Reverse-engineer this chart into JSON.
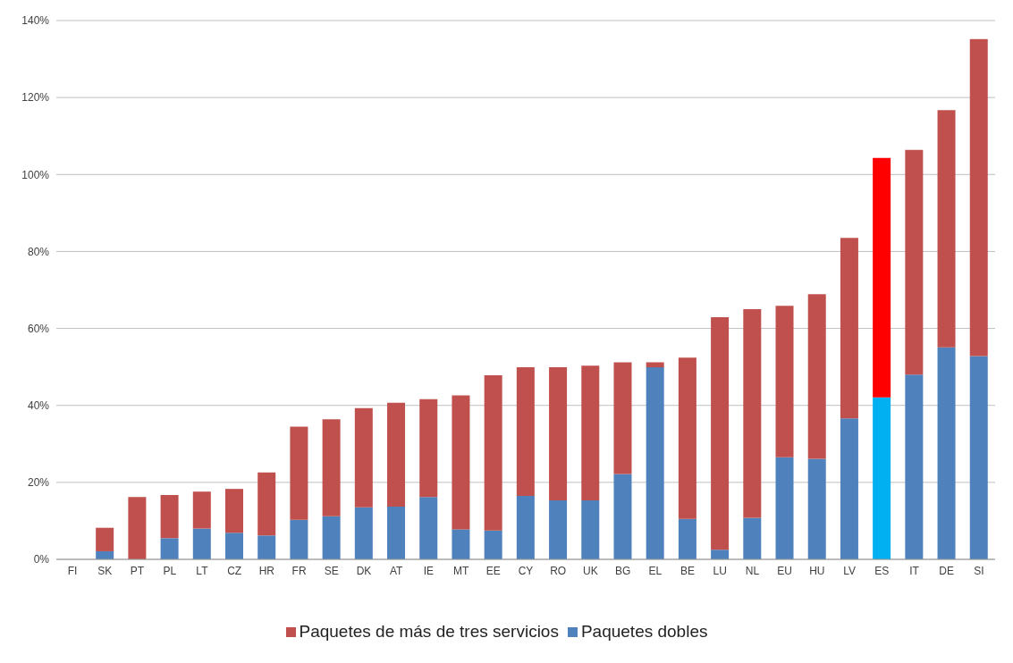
{
  "chart_data": {
    "type": "bar",
    "stacked": true,
    "categories": [
      "FI",
      "SK",
      "PT",
      "PL",
      "LT",
      "CZ",
      "HR",
      "FR",
      "SE",
      "DK",
      "AT",
      "IE",
      "MT",
      "EE",
      "CY",
      "RO",
      "UK",
      "BG",
      "EL",
      "BE",
      "LU",
      "NL",
      "EU",
      "HU",
      "LV",
      "ES",
      "IT",
      "DE",
      "SI"
    ],
    "series": [
      {
        "name": "Paquetes dobles",
        "color": "#4f81bd",
        "colors": [
          "#4f81bd",
          "#4f81bd",
          "#4f81bd",
          "#4f81bd",
          "#4f81bd",
          "#4f81bd",
          "#4f81bd",
          "#4f81bd",
          "#4f81bd",
          "#4f81bd",
          "#4f81bd",
          "#4f81bd",
          "#4f81bd",
          "#4f81bd",
          "#4f81bd",
          "#4f81bd",
          "#4f81bd",
          "#4f81bd",
          "#4f81bd",
          "#4f81bd",
          "#4f81bd",
          "#4f81bd",
          "#4f81bd",
          "#4f81bd",
          "#4f81bd",
          "#00b0f0",
          "#4f81bd",
          "#4f81bd",
          "#4f81bd"
        ],
        "values": [
          0,
          2.1,
          0,
          5.5,
          8.0,
          6.9,
          6.2,
          10.3,
          11.2,
          13.5,
          13.7,
          16.2,
          7.8,
          7.5,
          16.5,
          15.3,
          15.3,
          22.2,
          49.9,
          10.5,
          2.5,
          10.8,
          26.5,
          26.1,
          36.6,
          42.1,
          48.0,
          55.1,
          52.8
        ]
      },
      {
        "name": "Paquetes de más de tres servicios",
        "color": "#c0504d",
        "colors": [
          "#c0504d",
          "#c0504d",
          "#c0504d",
          "#c0504d",
          "#c0504d",
          "#c0504d",
          "#c0504d",
          "#c0504d",
          "#c0504d",
          "#c0504d",
          "#c0504d",
          "#c0504d",
          "#c0504d",
          "#c0504d",
          "#c0504d",
          "#c0504d",
          "#c0504d",
          "#c0504d",
          "#c0504d",
          "#c0504d",
          "#c0504d",
          "#c0504d",
          "#c0504d",
          "#c0504d",
          "#c0504d",
          "#ff0000",
          "#c0504d",
          "#c0504d",
          "#c0504d"
        ],
        "values": [
          0,
          6.1,
          16.2,
          11.2,
          9.6,
          11.4,
          16.4,
          24.2,
          25.2,
          25.8,
          27.0,
          25.4,
          34.8,
          40.3,
          33.4,
          34.6,
          35.0,
          29.0,
          1.3,
          41.9,
          60.4,
          54.2,
          39.4,
          42.8,
          46.9,
          62.2,
          58.4,
          61.6,
          82.4
        ]
      }
    ],
    "ylim": [
      0,
      140
    ],
    "yticks": [
      {
        "value": 0,
        "label": "0%"
      },
      {
        "value": 20,
        "label": "20%"
      },
      {
        "value": 40,
        "label": "40%"
      },
      {
        "value": 60,
        "label": "60%"
      },
      {
        "value": 80,
        "label": "80%"
      },
      {
        "value": 100,
        "label": "100%"
      },
      {
        "value": 120,
        "label": "120%"
      },
      {
        "value": 140,
        "label": "140%"
      }
    ],
    "grid": "y",
    "legend": "bottom"
  }
}
